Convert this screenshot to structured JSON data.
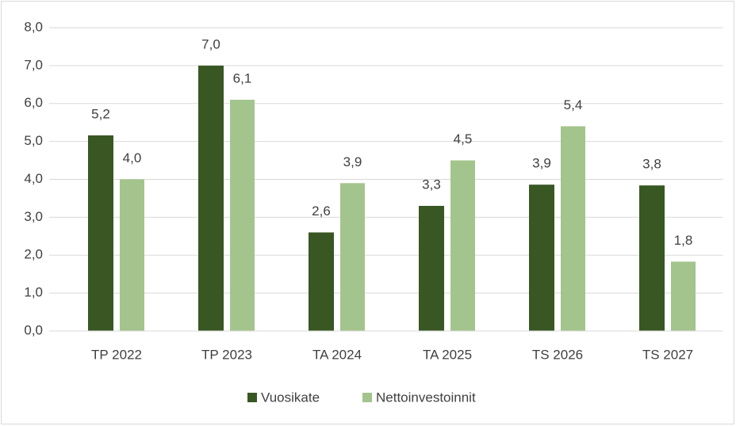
{
  "chart_data": {
    "type": "bar",
    "categories": [
      "TP 2022",
      "TP 2023",
      "TA 2024",
      "TA 2025",
      "TS 2026",
      "TS 2027"
    ],
    "series": [
      {
        "name": "Vuosikate",
        "color": "#385723",
        "values": [
          5.16,
          7.0,
          2.6,
          3.3,
          3.86,
          3.84
        ],
        "value_labels": [
          "5,2",
          "7,0",
          "2,6",
          "3,3",
          "3,9",
          "3,8"
        ]
      },
      {
        "name": "Nettoinvestoinnit",
        "color": "#a3c48c",
        "values": [
          4.0,
          6.1,
          3.9,
          4.5,
          5.4,
          1.83
        ],
        "value_labels": [
          "4,0",
          "6,1",
          "3,9",
          "4,5",
          "5,4",
          "1,8"
        ]
      }
    ],
    "ylim": [
      0,
      8
    ],
    "yticks": [
      {
        "value": 0,
        "label": "0,0"
      },
      {
        "value": 1,
        "label": "1,0"
      },
      {
        "value": 2,
        "label": "2,0"
      },
      {
        "value": 3,
        "label": "3,0"
      },
      {
        "value": 4,
        "label": "4,0"
      },
      {
        "value": 5,
        "label": "5,0"
      },
      {
        "value": 6,
        "label": "6,0"
      },
      {
        "value": 7,
        "label": "7,0"
      },
      {
        "value": 8,
        "label": "8,0"
      }
    ],
    "grid": true,
    "legend": "bottom"
  }
}
